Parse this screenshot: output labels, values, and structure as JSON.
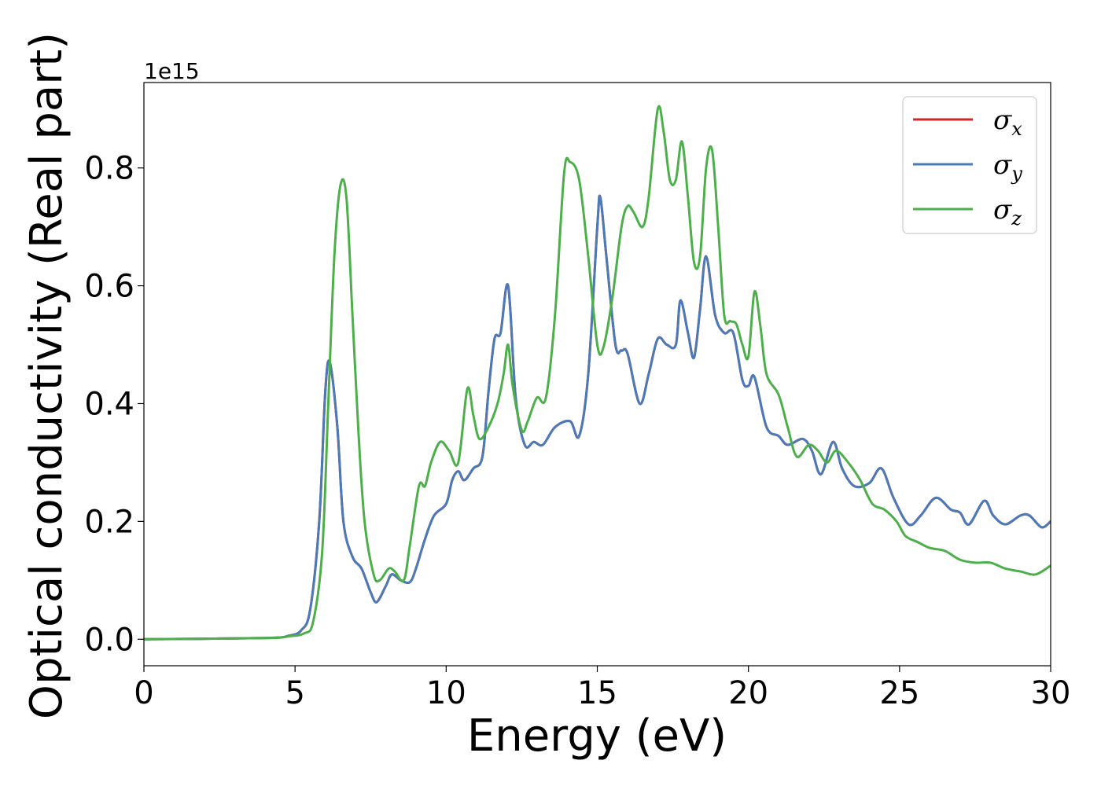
{
  "chart_data": {
    "type": "line",
    "xlabel": "Energy (eV)",
    "ylabel": "Optical conductivity (Real part)",
    "y_offset_label": "1e15",
    "xlim": [
      0,
      30
    ],
    "ylim": [
      -0.045,
      0.945
    ],
    "x_ticks": [
      0,
      5,
      10,
      15,
      20,
      25,
      30
    ],
    "x_tick_labels": [
      "0",
      "5",
      "10",
      "15",
      "20",
      "25",
      "30"
    ],
    "y_ticks": [
      0.0,
      0.2,
      0.4,
      0.6,
      0.8
    ],
    "y_tick_labels": [
      "0.0",
      "0.2",
      "0.4",
      "0.6",
      "0.8"
    ],
    "grid": false,
    "legend_position": "top-right",
    "series": [
      {
        "name": "σx",
        "symbol": "σ",
        "subscript": "x",
        "color": "#d62728",
        "points": [
          [
            0,
            0
          ],
          [
            4,
            0.002
          ],
          [
            4.8,
            0.006
          ],
          [
            5.2,
            0.015
          ],
          [
            5.5,
            0.05
          ],
          [
            5.8,
            0.2
          ],
          [
            6.0,
            0.42
          ],
          [
            6.15,
            0.47
          ],
          [
            6.4,
            0.36
          ],
          [
            6.6,
            0.2
          ],
          [
            6.9,
            0.14
          ],
          [
            7.2,
            0.12
          ],
          [
            7.5,
            0.08
          ],
          [
            7.7,
            0.063
          ],
          [
            8.0,
            0.09
          ],
          [
            8.2,
            0.11
          ],
          [
            8.5,
            0.1
          ],
          [
            8.8,
            0.097
          ],
          [
            9.0,
            0.12
          ],
          [
            9.3,
            0.17
          ],
          [
            9.6,
            0.21
          ],
          [
            10.0,
            0.23
          ],
          [
            10.2,
            0.27
          ],
          [
            10.4,
            0.285
          ],
          [
            10.6,
            0.27
          ],
          [
            10.9,
            0.29
          ],
          [
            11.2,
            0.31
          ],
          [
            11.4,
            0.42
          ],
          [
            11.6,
            0.51
          ],
          [
            11.8,
            0.52
          ],
          [
            12.05,
            0.6
          ],
          [
            12.3,
            0.41
          ],
          [
            12.6,
            0.33
          ],
          [
            12.9,
            0.335
          ],
          [
            13.2,
            0.33
          ],
          [
            13.6,
            0.36
          ],
          [
            14.1,
            0.37
          ],
          [
            14.4,
            0.345
          ],
          [
            14.7,
            0.45
          ],
          [
            15.0,
            0.7
          ],
          [
            15.1,
            0.75
          ],
          [
            15.3,
            0.65
          ],
          [
            15.6,
            0.5
          ],
          [
            15.8,
            0.49
          ],
          [
            16.0,
            0.485
          ],
          [
            16.4,
            0.4
          ],
          [
            16.7,
            0.45
          ],
          [
            17.0,
            0.51
          ],
          [
            17.3,
            0.5
          ],
          [
            17.6,
            0.5
          ],
          [
            17.75,
            0.575
          ],
          [
            18.0,
            0.52
          ],
          [
            18.2,
            0.478
          ],
          [
            18.4,
            0.56
          ],
          [
            18.6,
            0.65
          ],
          [
            18.9,
            0.55
          ],
          [
            19.2,
            0.52
          ],
          [
            19.5,
            0.52
          ],
          [
            19.8,
            0.44
          ],
          [
            20.0,
            0.43
          ],
          [
            20.2,
            0.445
          ],
          [
            20.6,
            0.36
          ],
          [
            21.0,
            0.345
          ],
          [
            21.3,
            0.33
          ],
          [
            21.8,
            0.34
          ],
          [
            22.1,
            0.32
          ],
          [
            22.4,
            0.28
          ],
          [
            22.8,
            0.335
          ],
          [
            23.1,
            0.29
          ],
          [
            23.5,
            0.26
          ],
          [
            24.0,
            0.265
          ],
          [
            24.4,
            0.29
          ],
          [
            24.8,
            0.24
          ],
          [
            25.3,
            0.195
          ],
          [
            25.7,
            0.21
          ],
          [
            26.2,
            0.24
          ],
          [
            26.7,
            0.22
          ],
          [
            27.0,
            0.215
          ],
          [
            27.3,
            0.195
          ],
          [
            27.8,
            0.235
          ],
          [
            28.1,
            0.21
          ],
          [
            28.5,
            0.195
          ],
          [
            29.0,
            0.21
          ],
          [
            29.3,
            0.21
          ],
          [
            29.7,
            0.19
          ],
          [
            30,
            0.2
          ]
        ]
      },
      {
        "name": "σy",
        "symbol": "σ",
        "subscript": "y",
        "color": "#4a7ab8",
        "points": [
          [
            0,
            0
          ],
          [
            4,
            0.002
          ],
          [
            4.8,
            0.006
          ],
          [
            5.2,
            0.015
          ],
          [
            5.5,
            0.05
          ],
          [
            5.8,
            0.2
          ],
          [
            6.0,
            0.42
          ],
          [
            6.15,
            0.47
          ],
          [
            6.4,
            0.36
          ],
          [
            6.6,
            0.2
          ],
          [
            6.9,
            0.14
          ],
          [
            7.2,
            0.12
          ],
          [
            7.5,
            0.08
          ],
          [
            7.7,
            0.063
          ],
          [
            8.0,
            0.09
          ],
          [
            8.2,
            0.11
          ],
          [
            8.5,
            0.1
          ],
          [
            8.8,
            0.097
          ],
          [
            9.0,
            0.12
          ],
          [
            9.3,
            0.17
          ],
          [
            9.6,
            0.21
          ],
          [
            10.0,
            0.23
          ],
          [
            10.2,
            0.27
          ],
          [
            10.4,
            0.285
          ],
          [
            10.6,
            0.27
          ],
          [
            10.9,
            0.29
          ],
          [
            11.2,
            0.31
          ],
          [
            11.4,
            0.42
          ],
          [
            11.6,
            0.51
          ],
          [
            11.8,
            0.52
          ],
          [
            12.05,
            0.6
          ],
          [
            12.3,
            0.41
          ],
          [
            12.6,
            0.33
          ],
          [
            12.9,
            0.335
          ],
          [
            13.2,
            0.33
          ],
          [
            13.6,
            0.36
          ],
          [
            14.1,
            0.37
          ],
          [
            14.4,
            0.345
          ],
          [
            14.7,
            0.45
          ],
          [
            15.0,
            0.7
          ],
          [
            15.1,
            0.75
          ],
          [
            15.3,
            0.65
          ],
          [
            15.6,
            0.5
          ],
          [
            15.8,
            0.49
          ],
          [
            16.0,
            0.485
          ],
          [
            16.4,
            0.4
          ],
          [
            16.7,
            0.45
          ],
          [
            17.0,
            0.51
          ],
          [
            17.3,
            0.5
          ],
          [
            17.6,
            0.5
          ],
          [
            17.75,
            0.575
          ],
          [
            18.0,
            0.52
          ],
          [
            18.2,
            0.478
          ],
          [
            18.4,
            0.56
          ],
          [
            18.6,
            0.65
          ],
          [
            18.9,
            0.55
          ],
          [
            19.2,
            0.52
          ],
          [
            19.5,
            0.52
          ],
          [
            19.8,
            0.44
          ],
          [
            20.0,
            0.43
          ],
          [
            20.2,
            0.445
          ],
          [
            20.6,
            0.36
          ],
          [
            21.0,
            0.345
          ],
          [
            21.3,
            0.33
          ],
          [
            21.8,
            0.34
          ],
          [
            22.1,
            0.32
          ],
          [
            22.4,
            0.28
          ],
          [
            22.8,
            0.335
          ],
          [
            23.1,
            0.29
          ],
          [
            23.5,
            0.26
          ],
          [
            24.0,
            0.265
          ],
          [
            24.4,
            0.29
          ],
          [
            24.8,
            0.24
          ],
          [
            25.3,
            0.195
          ],
          [
            25.7,
            0.21
          ],
          [
            26.2,
            0.24
          ],
          [
            26.7,
            0.22
          ],
          [
            27.0,
            0.215
          ],
          [
            27.3,
            0.195
          ],
          [
            27.8,
            0.235
          ],
          [
            28.1,
            0.21
          ],
          [
            28.5,
            0.195
          ],
          [
            29.0,
            0.21
          ],
          [
            29.3,
            0.21
          ],
          [
            29.7,
            0.19
          ],
          [
            30,
            0.2
          ]
        ]
      },
      {
        "name": "σz",
        "symbol": "σ",
        "subscript": "z",
        "color": "#4daf4a",
        "points": [
          [
            0,
            0
          ],
          [
            4,
            0.002
          ],
          [
            4.8,
            0.005
          ],
          [
            5.3,
            0.01
          ],
          [
            5.6,
            0.03
          ],
          [
            5.9,
            0.15
          ],
          [
            6.1,
            0.4
          ],
          [
            6.3,
            0.65
          ],
          [
            6.5,
            0.77
          ],
          [
            6.7,
            0.75
          ],
          [
            6.9,
            0.55
          ],
          [
            7.1,
            0.35
          ],
          [
            7.3,
            0.2
          ],
          [
            7.6,
            0.11
          ],
          [
            7.8,
            0.1
          ],
          [
            8.1,
            0.12
          ],
          [
            8.3,
            0.115
          ],
          [
            8.6,
            0.1
          ],
          [
            8.8,
            0.16
          ],
          [
            9.1,
            0.26
          ],
          [
            9.3,
            0.26
          ],
          [
            9.5,
            0.3
          ],
          [
            9.8,
            0.335
          ],
          [
            10.1,
            0.32
          ],
          [
            10.4,
            0.3
          ],
          [
            10.7,
            0.425
          ],
          [
            10.9,
            0.38
          ],
          [
            11.1,
            0.34
          ],
          [
            11.4,
            0.36
          ],
          [
            11.7,
            0.4
          ],
          [
            11.9,
            0.45
          ],
          [
            12.05,
            0.5
          ],
          [
            12.2,
            0.43
          ],
          [
            12.5,
            0.355
          ],
          [
            12.7,
            0.37
          ],
          [
            13.0,
            0.41
          ],
          [
            13.3,
            0.41
          ],
          [
            13.6,
            0.55
          ],
          [
            13.9,
            0.79
          ],
          [
            14.1,
            0.81
          ],
          [
            14.4,
            0.78
          ],
          [
            14.7,
            0.65
          ],
          [
            15.0,
            0.5
          ],
          [
            15.2,
            0.495
          ],
          [
            15.5,
            0.58
          ],
          [
            15.8,
            0.7
          ],
          [
            16.0,
            0.735
          ],
          [
            16.2,
            0.725
          ],
          [
            16.5,
            0.7
          ],
          [
            16.7,
            0.75
          ],
          [
            17.0,
            0.9
          ],
          [
            17.2,
            0.86
          ],
          [
            17.4,
            0.78
          ],
          [
            17.6,
            0.78
          ],
          [
            17.8,
            0.845
          ],
          [
            18.0,
            0.75
          ],
          [
            18.2,
            0.64
          ],
          [
            18.4,
            0.65
          ],
          [
            18.6,
            0.8
          ],
          [
            18.8,
            0.83
          ],
          [
            19.0,
            0.7
          ],
          [
            19.2,
            0.55
          ],
          [
            19.4,
            0.54
          ],
          [
            19.6,
            0.535
          ],
          [
            19.8,
            0.5
          ],
          [
            20.0,
            0.48
          ],
          [
            20.2,
            0.59
          ],
          [
            20.4,
            0.53
          ],
          [
            20.6,
            0.45
          ],
          [
            21.0,
            0.415
          ],
          [
            21.3,
            0.36
          ],
          [
            21.6,
            0.31
          ],
          [
            22.0,
            0.33
          ],
          [
            22.3,
            0.32
          ],
          [
            22.6,
            0.3
          ],
          [
            22.9,
            0.32
          ],
          [
            23.3,
            0.3
          ],
          [
            23.7,
            0.27
          ],
          [
            24.1,
            0.23
          ],
          [
            24.5,
            0.22
          ],
          [
            24.9,
            0.2
          ],
          [
            25.2,
            0.175
          ],
          [
            25.6,
            0.165
          ],
          [
            26.0,
            0.155
          ],
          [
            26.5,
            0.15
          ],
          [
            27.0,
            0.135
          ],
          [
            27.5,
            0.13
          ],
          [
            28.0,
            0.13
          ],
          [
            28.5,
            0.12
          ],
          [
            29.0,
            0.115
          ],
          [
            29.5,
            0.11
          ],
          [
            30,
            0.125
          ]
        ]
      }
    ]
  }
}
